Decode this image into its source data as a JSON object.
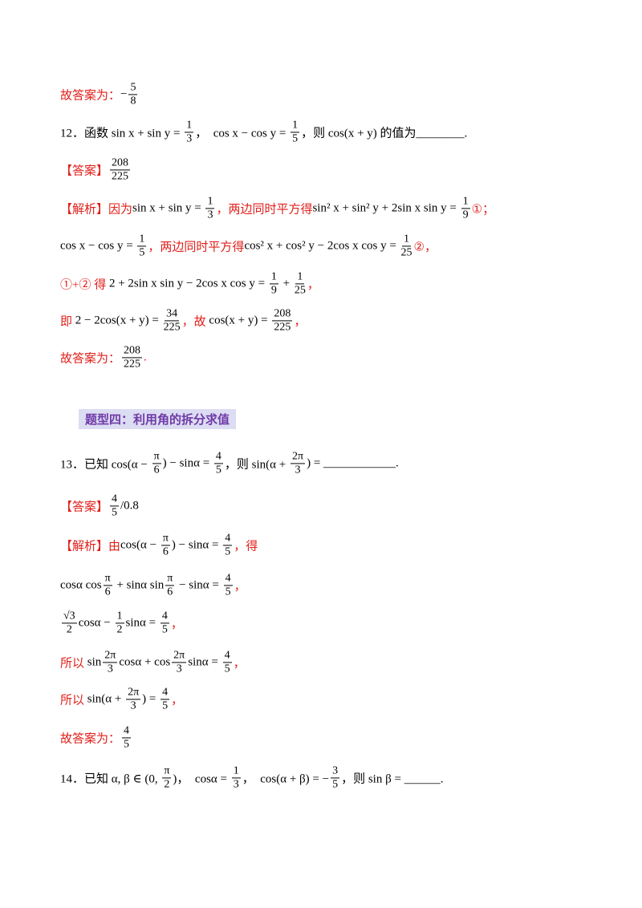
{
  "lines": [
    {
      "parts": [
        {
          "r": "故答案为："
        },
        {
          "t": "−"
        },
        {
          "f": [
            "5",
            "8"
          ]
        }
      ]
    },
    {
      "parts": [
        {
          "t": "12．函数 sin x + sin y = "
        },
        {
          "f": [
            "1",
            "3"
          ]
        },
        {
          "t": "，  cos x − cos y = "
        },
        {
          "f": [
            "1",
            "5"
          ]
        },
        {
          "t": "，则 cos(x + y) 的值为________."
        }
      ]
    },
    {
      "parts": [
        {
          "r": "【答案】"
        },
        {
          "f": [
            "208",
            "225"
          ]
        }
      ]
    },
    {
      "parts": [
        {
          "r": "【解析】因为"
        },
        {
          "t": "sin x + sin y = "
        },
        {
          "f": [
            "1",
            "3"
          ]
        },
        {
          "r": "，两边同时平方得"
        },
        {
          "t": "sin² x + sin² y + 2sin x sin y = "
        },
        {
          "f": [
            "1",
            "9"
          ]
        },
        {
          "r": "①；"
        }
      ]
    },
    {
      "parts": [
        {
          "t": "cos x − cos y = "
        },
        {
          "f": [
            "1",
            "5"
          ]
        },
        {
          "r": "，两边同时平方得"
        },
        {
          "t": "cos² x + cos² y − 2cos x cos y = "
        },
        {
          "f": [
            "1",
            "25"
          ]
        },
        {
          "r": "②，"
        }
      ]
    },
    {
      "parts": [
        {
          "r": "①+② 得 "
        },
        {
          "t": "2 + 2sin x sin y − 2cos x cos y = "
        },
        {
          "f": [
            "1",
            "9"
          ]
        },
        {
          "t": " + "
        },
        {
          "f": [
            "1",
            "25"
          ]
        },
        {
          "r": "，"
        }
      ]
    },
    {
      "parts": [
        {
          "r": "即 "
        },
        {
          "t": "2 − 2cos(x + y) = "
        },
        {
          "f": [
            "34",
            "225"
          ]
        },
        {
          "r": "，故 "
        },
        {
          "t": "cos(x + y) = "
        },
        {
          "f": [
            "208",
            "225"
          ]
        },
        {
          "r": "，"
        }
      ]
    },
    {
      "parts": [
        {
          "r": "故答案为："
        },
        {
          "f": [
            "208",
            "225"
          ]
        },
        {
          "r": "."
        }
      ]
    },
    {
      "parts": [
        {
          "t": "13．已知 cos(α − "
        },
        {
          "f": [
            "π",
            "6"
          ]
        },
        {
          "t": ") − sinα = "
        },
        {
          "f": [
            "4",
            "5"
          ]
        },
        {
          "t": "，则 sin(α + "
        },
        {
          "f": [
            "2π",
            "3"
          ]
        },
        {
          "t": ") = ____________."
        }
      ]
    },
    {
      "parts": [
        {
          "r": "【答案】"
        },
        {
          "f": [
            "4",
            "5"
          ]
        },
        {
          "t": "/0.8"
        }
      ]
    },
    {
      "parts": [
        {
          "r": "【解析】由"
        },
        {
          "t": "cos(α − "
        },
        {
          "f": [
            "π",
            "6"
          ]
        },
        {
          "t": ") − sinα = "
        },
        {
          "f": [
            "4",
            "5"
          ]
        },
        {
          "r": "，得"
        }
      ]
    },
    {
      "parts": [
        {
          "t": "cosα cos"
        },
        {
          "f": [
            "π",
            "6"
          ]
        },
        {
          "t": " + sinα sin"
        },
        {
          "f": [
            "π",
            "6"
          ]
        },
        {
          "t": " − sinα = "
        },
        {
          "f": [
            "4",
            "5"
          ]
        },
        {
          "r": "，"
        }
      ]
    },
    {
      "parts": [
        {
          "f": [
            "√3",
            "2"
          ]
        },
        {
          "t": "cosα − "
        },
        {
          "f": [
            "1",
            "2"
          ]
        },
        {
          "t": "sinα = "
        },
        {
          "f": [
            "4",
            "5"
          ]
        },
        {
          "r": "，"
        }
      ]
    },
    {
      "parts": [
        {
          "r": "所以 "
        },
        {
          "t": "sin"
        },
        {
          "f": [
            "2π",
            "3"
          ]
        },
        {
          "t": "cosα + cos"
        },
        {
          "f": [
            "2π",
            "3"
          ]
        },
        {
          "t": "sinα = "
        },
        {
          "f": [
            "4",
            "5"
          ]
        },
        {
          "r": "，"
        }
      ]
    },
    {
      "parts": [
        {
          "r": "所以 "
        },
        {
          "t": "sin(α + "
        },
        {
          "f": [
            "2π",
            "3"
          ]
        },
        {
          "t": ") = "
        },
        {
          "f": [
            "4",
            "5"
          ]
        },
        {
          "r": "，"
        }
      ]
    },
    {
      "parts": [
        {
          "r": "故答案为："
        },
        {
          "f": [
            "4",
            "5"
          ]
        }
      ]
    },
    {
      "parts": [
        {
          "t": "14．已知 α, β ∈ (0, "
        },
        {
          "f": [
            "π",
            "2"
          ]
        },
        {
          "t": ")，  cosα = "
        },
        {
          "f": [
            "1",
            "3"
          ]
        },
        {
          "t": "，  cos(α + β) = −"
        },
        {
          "f": [
            "3",
            "5"
          ]
        },
        {
          "t": "，则 sin β = ______."
        }
      ]
    }
  ],
  "heading": "题型四：利用角的拆分求值"
}
